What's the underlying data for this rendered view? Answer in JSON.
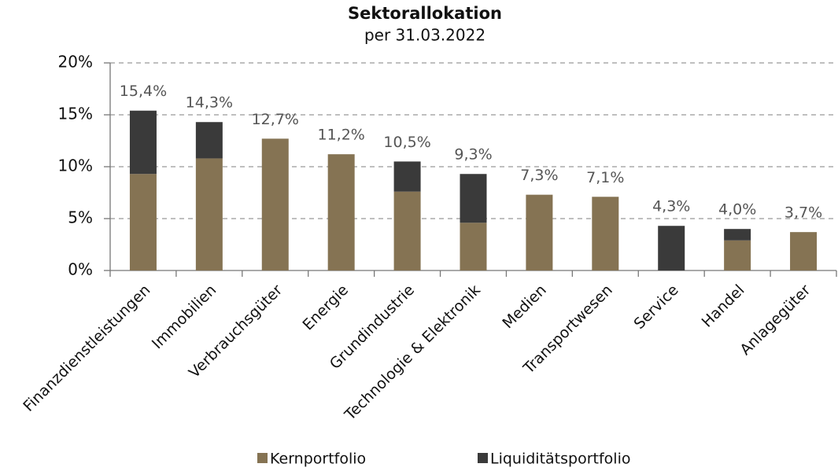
{
  "chart_data": {
    "type": "stacked_bar",
    "title": "Sektorallokation",
    "subtitle": "per 31.03.2022",
    "categories": [
      "Finanzdienstleistungen",
      "Immobilien",
      "Verbrauchsgüter",
      "Energie",
      "Grundindustrie",
      "Technologie & Elektronik",
      "Medien",
      "Transportwesen",
      "Service",
      "Handel",
      "Anlagegüter"
    ],
    "series": [
      {
        "name": "Kernportfolio",
        "color": "#857353",
        "values": [
          9.3,
          10.8,
          12.7,
          11.2,
          7.6,
          4.6,
          7.3,
          7.1,
          0,
          2.9,
          3.7
        ]
      },
      {
        "name": "Liquiditätsportfolio",
        "color": "#3a3a3a",
        "values": [
          6.1,
          3.5,
          0,
          0,
          2.9,
          4.7,
          0,
          0,
          4.3,
          1.1,
          0
        ]
      }
    ],
    "totals": [
      15.4,
      14.3,
      12.7,
      11.2,
      10.5,
      9.3,
      7.3,
      7.1,
      4.3,
      4.0,
      3.7
    ],
    "total_labels": [
      "15,4%",
      "14,3%",
      "12,7%",
      "11,2%",
      "10,5%",
      "9,3%",
      "7,3%",
      "7,1%",
      "4,3%",
      "4,0%",
      "3,7%"
    ],
    "ylim": [
      0,
      20
    ],
    "yticks": [
      {
        "value": 0,
        "label": "0%"
      },
      {
        "value": 5,
        "label": "5%"
      },
      {
        "value": 10,
        "label": "10%"
      },
      {
        "value": 15,
        "label": "15%"
      },
      {
        "value": 20,
        "label": "20%"
      }
    ],
    "grid": true,
    "legend": "bottom"
  }
}
